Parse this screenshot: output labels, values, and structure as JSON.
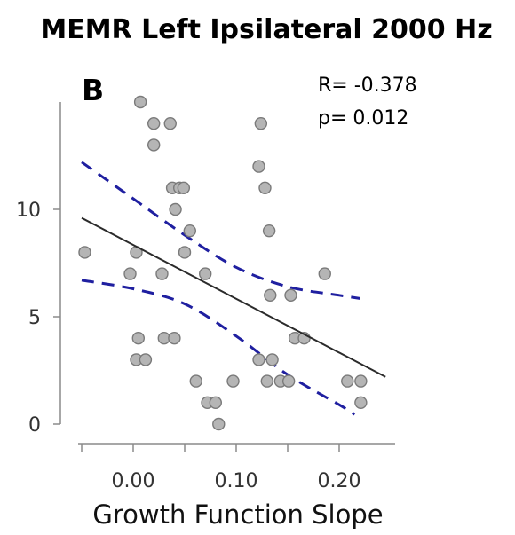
{
  "chart_data": {
    "type": "scatter",
    "title": "MEMR Left Ipsilateral  2000 Hz",
    "panel_label": "B",
    "annotations": [
      "R= -0.378",
      "p= 0.012"
    ],
    "xlabel": "Growth Function Slope",
    "ylabel": "",
    "xlim": [
      -0.06,
      0.25
    ],
    "ylim": [
      -0.5,
      15.5
    ],
    "x_ticks": [
      {
        "value": 0.0,
        "label": "0.00"
      },
      {
        "value": 0.1,
        "label": "0.10"
      },
      {
        "value": 0.2,
        "label": "0.20"
      }
    ],
    "x_minor_ticks": [
      -0.05,
      0.05,
      0.15
    ],
    "y_ticks": [
      {
        "value": 0,
        "label": "0"
      },
      {
        "value": 5,
        "label": "5"
      },
      {
        "value": 10,
        "label": "10"
      }
    ],
    "grid": false,
    "points": [
      {
        "x": -0.047,
        "y": 8
      },
      {
        "x": 0.007,
        "y": 15
      },
      {
        "x": 0.02,
        "y": 14
      },
      {
        "x": 0.036,
        "y": 14
      },
      {
        "x": 0.02,
        "y": 13
      },
      {
        "x": -0.003,
        "y": 7
      },
      {
        "x": 0.003,
        "y": 8
      },
      {
        "x": 0.028,
        "y": 7
      },
      {
        "x": 0.005,
        "y": 4
      },
      {
        "x": 0.03,
        "y": 4
      },
      {
        "x": 0.04,
        "y": 4
      },
      {
        "x": 0.003,
        "y": 3
      },
      {
        "x": 0.012,
        "y": 3
      },
      {
        "x": 0.038,
        "y": 11
      },
      {
        "x": 0.045,
        "y": 11
      },
      {
        "x": 0.049,
        "y": 11
      },
      {
        "x": 0.041,
        "y": 10
      },
      {
        "x": 0.055,
        "y": 9
      },
      {
        "x": 0.05,
        "y": 8
      },
      {
        "x": 0.07,
        "y": 7
      },
      {
        "x": 0.061,
        "y": 2
      },
      {
        "x": 0.072,
        "y": 1
      },
      {
        "x": 0.08,
        "y": 1
      },
      {
        "x": 0.083,
        "y": 0
      },
      {
        "x": 0.097,
        "y": 2
      },
      {
        "x": 0.124,
        "y": 14
      },
      {
        "x": 0.122,
        "y": 12
      },
      {
        "x": 0.128,
        "y": 11
      },
      {
        "x": 0.132,
        "y": 9
      },
      {
        "x": 0.133,
        "y": 6
      },
      {
        "x": 0.122,
        "y": 3
      },
      {
        "x": 0.135,
        "y": 3
      },
      {
        "x": 0.13,
        "y": 2
      },
      {
        "x": 0.143,
        "y": 2
      },
      {
        "x": 0.151,
        "y": 2
      },
      {
        "x": 0.153,
        "y": 6
      },
      {
        "x": 0.157,
        "y": 4
      },
      {
        "x": 0.166,
        "y": 4
      },
      {
        "x": 0.186,
        "y": 7
      },
      {
        "x": 0.208,
        "y": 2
      },
      {
        "x": 0.221,
        "y": 2
      },
      {
        "x": 0.221,
        "y": 1
      }
    ],
    "regression_line": {
      "x": [
        -0.05,
        0.245
      ],
      "y": [
        9.6,
        2.2
      ]
    },
    "confidence_band_upper": {
      "x": [
        -0.05,
        0.0,
        0.05,
        0.1,
        0.15,
        0.2,
        0.22
      ],
      "y": [
        12.2,
        10.5,
        8.8,
        7.3,
        6.4,
        6.0,
        5.85
      ]
    },
    "confidence_band_lower": {
      "x": [
        -0.05,
        0.0,
        0.05,
        0.1,
        0.15,
        0.2,
        0.215
      ],
      "y": [
        6.7,
        6.3,
        5.6,
        4.1,
        2.3,
        0.9,
        0.45
      ]
    },
    "colors": {
      "marker_fill": "#b5b5b5",
      "marker_stroke": "#7a7a7a",
      "regression_line": "#2b2b2b",
      "confidence_band": "#1f1fa0",
      "axis": "#8a8a8a"
    }
  }
}
